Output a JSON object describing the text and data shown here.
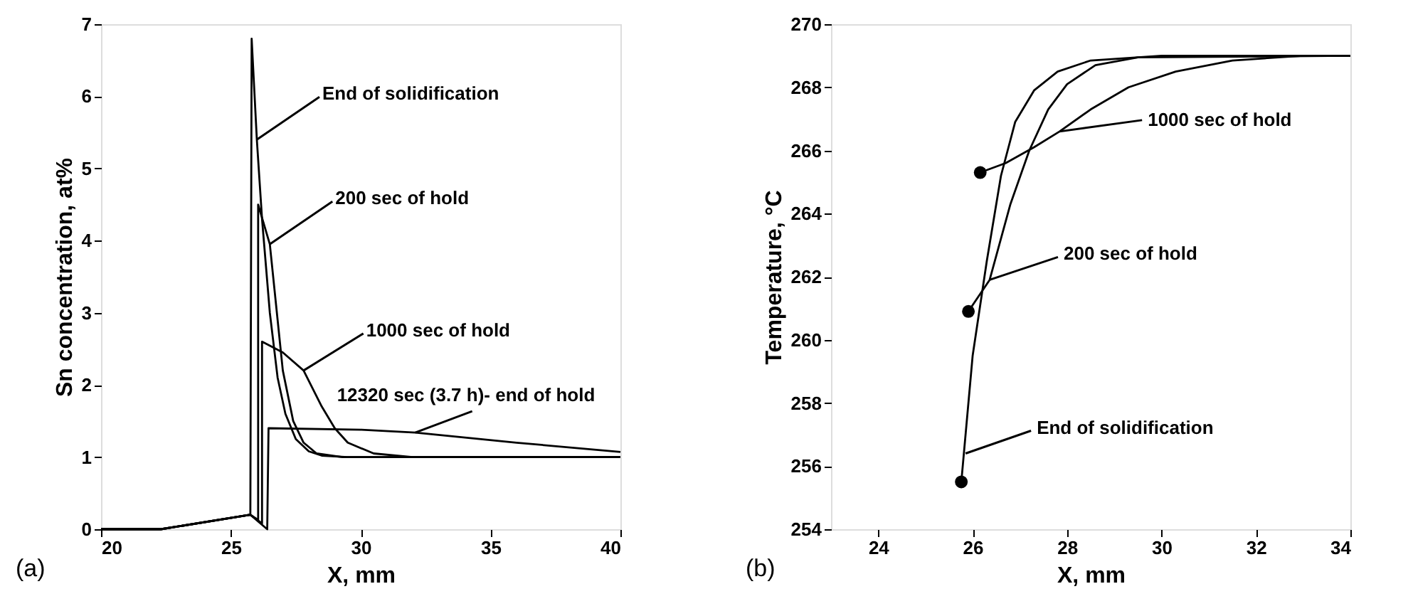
{
  "chart_data": [
    {
      "type": "line",
      "xlabel": "X, mm",
      "ylabel": "Sn concentration, at%",
      "xlim": [
        20,
        40
      ],
      "ylim": [
        0,
        7
      ],
      "xticks": [
        20,
        25,
        30,
        35,
        40
      ],
      "yticks": [
        0,
        1,
        2,
        3,
        4,
        5,
        6,
        7
      ],
      "marker": "none",
      "line_style": "solid",
      "series": [
        {
          "color": "#000000",
          "x": [
            20,
            22.3,
            25.75,
            25.8,
            26.0,
            26.2,
            26.5,
            26.8,
            27.1,
            27.5,
            28,
            28.5,
            29.5,
            40
          ],
          "values": [
            0,
            0,
            0.2,
            6.8,
            5.4,
            4.3,
            3.0,
            2.1,
            1.6,
            1.25,
            1.08,
            1.02,
            1.0,
            1.0
          ]
        },
        {
          "color": "#000000",
          "x": [
            20,
            22.3,
            25.75,
            26.05,
            26.05,
            26.5,
            27,
            27.4,
            27.8,
            28.3,
            29.3,
            40
          ],
          "values": [
            0,
            0,
            0.2,
            0.13,
            4.5,
            3.95,
            2.2,
            1.5,
            1.2,
            1.05,
            1.0,
            1.0
          ]
        },
        {
          "color": "#000000",
          "x": [
            20,
            22.3,
            25.75,
            26.2,
            26.2,
            27,
            27.8,
            28.5,
            29,
            29.5,
            30.5,
            32,
            40
          ],
          "values": [
            0,
            0,
            0.2,
            0.08,
            2.6,
            2.45,
            2.2,
            1.7,
            1.4,
            1.2,
            1.05,
            1.0,
            1.0
          ]
        },
        {
          "color": "#000000",
          "x": [
            20,
            22.3,
            25.75,
            26.4,
            26.45,
            30,
            32.1,
            36,
            40
          ],
          "values": [
            0,
            0,
            0.2,
            0,
            1.4,
            1.38,
            1.34,
            1.2,
            1.07
          ]
        }
      ],
      "annotations": [
        {
          "text": "End of solidification",
          "x": 26.0,
          "y": 5.4
        },
        {
          "text": "200 sec of hold",
          "x": 26.5,
          "y": 3.95
        },
        {
          "text": "1000 sec of hold",
          "x": 27.8,
          "y": 2.2
        },
        {
          "text": "12320 sec (3.7 h)- end of hold",
          "x": 32.1,
          "y": 1.34
        },
        "(a)"
      ]
    },
    {
      "type": "line",
      "xlabel": "X, mm",
      "ylabel": "Temperature, °C",
      "xlim": [
        23,
        34
      ],
      "ylim": [
        254,
        270
      ],
      "xticks": [
        24,
        26,
        28,
        30,
        32,
        34
      ],
      "yticks": [
        254,
        256,
        258,
        260,
        262,
        264,
        266,
        268,
        270
      ],
      "marker": "none",
      "line_style": "solid",
      "series": [
        {
          "color": "#000000",
          "x": [
            25.76,
            26.0,
            26.3,
            26.6,
            26.9,
            27.3,
            27.8,
            28.5,
            30,
            34
          ],
          "values": [
            255.5,
            259.5,
            262.5,
            265.2,
            266.9,
            267.9,
            268.5,
            268.85,
            269,
            269
          ]
        },
        {
          "color": "#000000",
          "x": [
            25.91,
            26.36,
            26.8,
            27.2,
            27.6,
            28.0,
            28.6,
            29.5,
            34
          ],
          "values": [
            260.9,
            261.9,
            264.3,
            266.0,
            267.3,
            268.1,
            268.7,
            268.95,
            269
          ]
        },
        {
          "color": "#000000",
          "x": [
            26.16,
            26.7,
            27.3,
            27.84,
            28.5,
            29.3,
            30.3,
            31.5,
            33,
            34
          ],
          "values": [
            265.3,
            265.6,
            266.1,
            266.6,
            267.3,
            268.0,
            268.5,
            268.85,
            269,
            269
          ]
        },
        {
          "type": "scatter",
          "marker": "circle",
          "color": "#000000",
          "x": [
            25.76,
            25.91,
            26.16
          ],
          "values": [
            255.5,
            260.9,
            265.3
          ]
        }
      ],
      "annotations": [
        {
          "text": "1000 sec of hold",
          "x": 27.84,
          "y": 266.6
        },
        {
          "text": "200 sec of hold",
          "x": 26.36,
          "y": 261.9
        },
        {
          "text": "End of solidification",
          "x": 25.85,
          "y": 256.4
        },
        "(b)"
      ]
    }
  ]
}
